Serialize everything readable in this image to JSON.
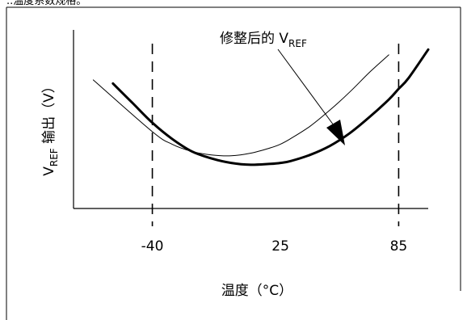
{
  "header_fragment": "..温度系数规格。",
  "chart_data": {
    "type": "line",
    "x": [
      -70,
      -60,
      -50,
      -40,
      -30,
      -20,
      -10,
      0,
      10,
      20,
      25,
      30,
      40,
      50,
      60,
      70,
      80,
      85,
      90,
      100
    ],
    "xticks": [
      "-40",
      "25",
      "85"
    ],
    "xtick_values": [
      -40,
      25,
      85
    ],
    "xlim": [
      -80,
      100
    ],
    "ylim": [
      0,
      10
    ],
    "xlabel": "温度（°C）",
    "ylabel_prefix": "V",
    "ylabel_subscript": "REF",
    "ylabel_suffix": " 输出（V）",
    "grid": false,
    "series": [
      {
        "name": "",
        "values": [
          7.2,
          null,
          null,
          4.3,
          3.6,
          3.2,
          3.0,
          2.95,
          3.1,
          3.4,
          3.6,
          3.9,
          4.6,
          5.5,
          6.5,
          7.6,
          8.6,
          null,
          null,
          null
        ],
        "vertex_x": 4,
        "stroke": "#000000",
        "weight": "thin"
      },
      {
        "name": "",
        "values": [
          null,
          7.0,
          5.9,
          4.8,
          3.9,
          3.2,
          2.8,
          2.55,
          2.45,
          2.5,
          2.55,
          2.65,
          3.0,
          3.5,
          4.2,
          5.1,
          6.1,
          6.7,
          7.3,
          8.9
        ],
        "vertex_x": 21,
        "stroke": "#000000",
        "weight": "bold"
      }
    ],
    "reference_lines": [
      {
        "x": -40,
        "style": "dashed"
      },
      {
        "x": 85,
        "style": "dashed"
      }
    ],
    "annotation": {
      "text_prefix": "修整后的 V",
      "text_subscript": "REF",
      "target_series": 1
    }
  }
}
